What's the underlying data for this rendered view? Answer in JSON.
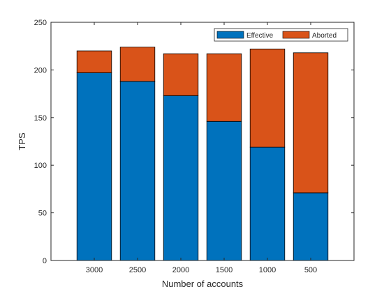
{
  "chart_data": {
    "type": "bar",
    "stacked": true,
    "categories": [
      "3000",
      "2500",
      "2000",
      "1500",
      "1000",
      "500"
    ],
    "series": [
      {
        "name": "Effective",
        "color": "#0072BD",
        "values": [
          197,
          188,
          173,
          146,
          119,
          71
        ]
      },
      {
        "name": "Aborted",
        "color": "#D95319",
        "values": [
          23,
          36,
          44,
          71,
          103,
          147
        ]
      }
    ],
    "title": "",
    "xlabel": "Number of accounts",
    "ylabel": "TPS",
    "ylim": [
      0,
      250
    ],
    "yticks": [
      0,
      50,
      100,
      150,
      200,
      250
    ],
    "grid": false,
    "legend_position": "top-right"
  }
}
